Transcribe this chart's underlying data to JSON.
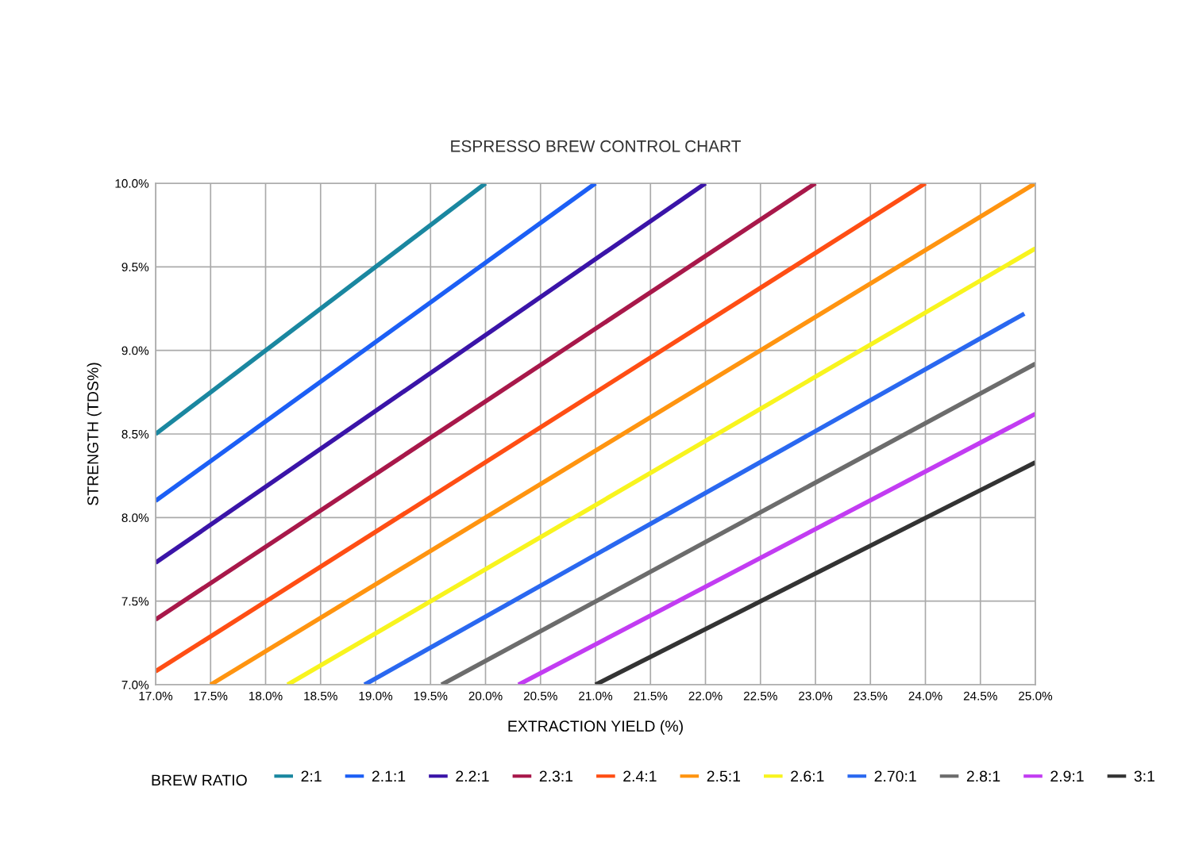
{
  "chart_data": {
    "type": "line",
    "title": "ESPRESSO BREW CONTROL CHART",
    "xlabel": "EXTRACTION YIELD (%)",
    "ylabel": "STRENGTH (TDS%)",
    "legend_title": "BREW RATIO",
    "legend": "bottom",
    "grid": true,
    "marker": "none",
    "line_style": "solid",
    "xlim": [
      17.0,
      25.0
    ],
    "xticks": [
      {
        "value": 17.0,
        "label": "17.0%"
      },
      {
        "value": 17.5,
        "label": "17.5%"
      },
      {
        "value": 18.0,
        "label": "18.0%"
      },
      {
        "value": 18.5,
        "label": "18.5%"
      },
      {
        "value": 19.0,
        "label": "19.0%"
      },
      {
        "value": 19.5,
        "label": "19.5%"
      },
      {
        "value": 20.0,
        "label": "20.0%"
      },
      {
        "value": 20.5,
        "label": "20.5%"
      },
      {
        "value": 21.0,
        "label": "21.0%"
      },
      {
        "value": 21.5,
        "label": "21.5%"
      },
      {
        "value": 22.0,
        "label": "22.0%"
      },
      {
        "value": 22.5,
        "label": "22.5%"
      },
      {
        "value": 23.0,
        "label": "23.0%"
      },
      {
        "value": 23.5,
        "label": "23.5%"
      },
      {
        "value": 24.0,
        "label": "24.0%"
      },
      {
        "value": 24.5,
        "label": "24.5%"
      },
      {
        "value": 25.0,
        "label": "25.0%"
      }
    ],
    "ylim": [
      7.0,
      10.0
    ],
    "yticks": [
      {
        "value": 7.0,
        "label": "7.0%"
      },
      {
        "value": 7.5,
        "label": "7.5%"
      },
      {
        "value": 8.0,
        "label": "8.0%"
      },
      {
        "value": 8.5,
        "label": "8.5%"
      },
      {
        "value": 9.0,
        "label": "9.0%"
      },
      {
        "value": 9.5,
        "label": "9.5%"
      },
      {
        "value": 10.0,
        "label": "10.0%"
      }
    ],
    "series": [
      {
        "name": "2:1",
        "color": "#1a87a0",
        "x": [
          17.0,
          20.0
        ],
        "values": [
          8.5,
          10.0
        ]
      },
      {
        "name": "2.1:1",
        "color": "#1c5ff5",
        "x": [
          17.0,
          21.0
        ],
        "values": [
          8.1,
          10.0
        ]
      },
      {
        "name": "2.2:1",
        "color": "#3a14a8",
        "x": [
          17.0,
          22.0
        ],
        "values": [
          7.73,
          10.0
        ]
      },
      {
        "name": "2.3:1",
        "color": "#a8184a",
        "x": [
          17.0,
          23.0
        ],
        "values": [
          7.39,
          10.0
        ]
      },
      {
        "name": "2.4:1",
        "color": "#ff4e14",
        "x": [
          17.0,
          24.0
        ],
        "values": [
          7.08,
          10.0
        ]
      },
      {
        "name": "2.5:1",
        "color": "#ff9410",
        "x": [
          17.5,
          25.0
        ],
        "values": [
          7.0,
          10.0
        ]
      },
      {
        "name": "2.6:1",
        "color": "#f8f41e",
        "x": [
          18.2,
          25.0
        ],
        "values": [
          7.0,
          9.61
        ]
      },
      {
        "name": "2.70:1",
        "color": "#2a68f0",
        "x": [
          18.9,
          24.9
        ],
        "values": [
          7.0,
          9.22
        ]
      },
      {
        "name": "2.8:1",
        "color": "#6c6c6c",
        "x": [
          19.6,
          25.0
        ],
        "values": [
          7.0,
          8.92
        ]
      },
      {
        "name": "2.9:1",
        "color": "#c23cf2",
        "x": [
          20.3,
          25.0
        ],
        "values": [
          7.0,
          8.62
        ]
      },
      {
        "name": "3:1",
        "color": "#333333",
        "x": [
          21.0,
          25.0
        ],
        "values": [
          7.0,
          8.33
        ]
      }
    ]
  }
}
